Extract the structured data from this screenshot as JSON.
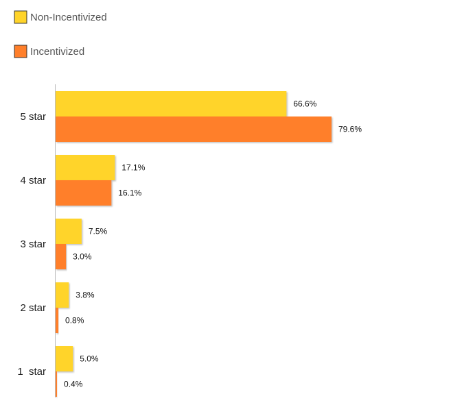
{
  "chart_data": {
    "type": "bar",
    "orientation": "horizontal",
    "categories": [
      "5 star",
      "4 star",
      "3 star",
      "2 star",
      "1  star"
    ],
    "series": [
      {
        "name": "Non-Incentivized",
        "color": "#FFD42A",
        "values": [
          66.6,
          17.1,
          7.5,
          3.8,
          5.0
        ],
        "labels": [
          "66.6%",
          "17.1%",
          "7.5%",
          "3.8%",
          "5.0%"
        ]
      },
      {
        "name": "Incentivized",
        "color": "#FF7F2A",
        "values": [
          79.6,
          16.1,
          3.0,
          0.8,
          0.4
        ],
        "labels": [
          "79.6%",
          "16.1%",
          "3.0%",
          "0.8%",
          "0.4%"
        ]
      }
    ],
    "legend_position": "top-left",
    "grid": false
  }
}
